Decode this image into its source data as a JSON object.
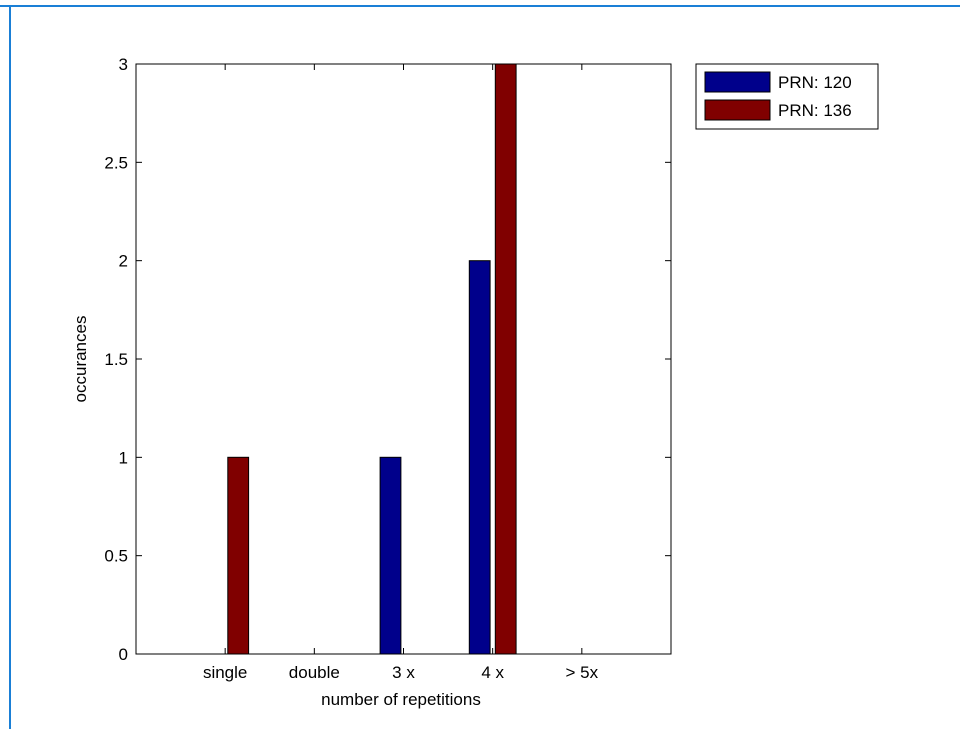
{
  "chart_data": {
    "type": "bar",
    "categories": [
      "single",
      "double",
      "3 x",
      "4 x",
      "> 5x"
    ],
    "series": [
      {
        "name": "PRN: 120",
        "color": "#00008b",
        "values": [
          0,
          0,
          1,
          2,
          0
        ]
      },
      {
        "name": "PRN: 136",
        "color": "#800000",
        "values": [
          1,
          0,
          0,
          3,
          0
        ]
      }
    ],
    "xlabel": "number of repetitions",
    "ylabel": "occurances",
    "ylim": [
      0,
      3
    ],
    "yticks": [
      "0",
      "0.5",
      "1",
      "1.5",
      "2",
      "2.5",
      "3"
    ],
    "ytick_values": [
      0,
      0.5,
      1,
      1.5,
      2,
      2.5,
      3
    ],
    "grid": false,
    "legend_position": "outside-top-right"
  }
}
